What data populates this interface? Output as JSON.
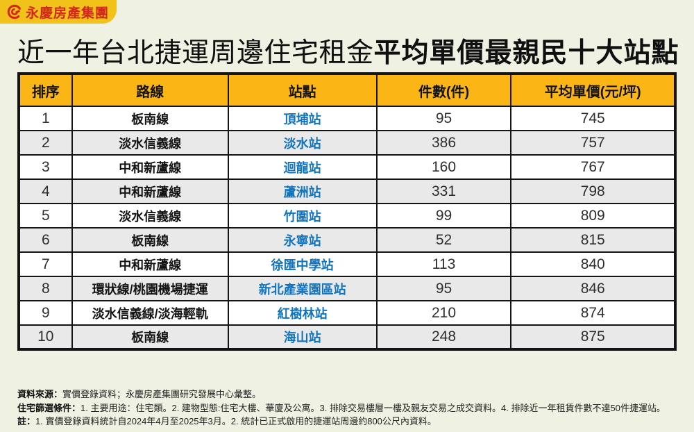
{
  "page": {
    "background_color": "#EFF1E2",
    "accent_yellow": "#FBB515",
    "logo_yellow": "#F1C31A",
    "logo_red": "#D3271C",
    "station_blue": "#1274BC",
    "alt_row_gray": "#E9E9E9"
  },
  "logo": {
    "text": "永慶房產集團"
  },
  "title": {
    "normal": "近一年台北捷運周邊住宅租金",
    "heavy": "平均單價最親民十大站點"
  },
  "table": {
    "columns": [
      "排序",
      "路線",
      "站點",
      "件數(件)",
      "平均單價(元/坪)"
    ],
    "rows": [
      {
        "rank": "1",
        "line": "板南線",
        "station": "頂埔站",
        "count": "95",
        "price": "745"
      },
      {
        "rank": "2",
        "line": "淡水信義線",
        "station": "淡水站",
        "count": "386",
        "price": "757"
      },
      {
        "rank": "3",
        "line": "中和新蘆線",
        "station": "迴龍站",
        "count": "160",
        "price": "767"
      },
      {
        "rank": "4",
        "line": "中和新蘆線",
        "station": "蘆洲站",
        "count": "331",
        "price": "798"
      },
      {
        "rank": "5",
        "line": "淡水信義線",
        "station": "竹圍站",
        "count": "99",
        "price": "809"
      },
      {
        "rank": "6",
        "line": "板南線",
        "station": "永寧站",
        "count": "52",
        "price": "815"
      },
      {
        "rank": "7",
        "line": "中和新蘆線",
        "station": "徐匯中學站",
        "count": "113",
        "price": "840"
      },
      {
        "rank": "8",
        "line": "環狀線/桃園機場捷運",
        "station": "新北產業園區站",
        "count": "95",
        "price": "846"
      },
      {
        "rank": "9",
        "line": "淡水信義線/淡海輕軌",
        "station": "紅樹林站",
        "count": "210",
        "price": "874"
      },
      {
        "rank": "10",
        "line": "板南線",
        "station": "海山站",
        "count": "248",
        "price": "875"
      }
    ]
  },
  "notes": [
    {
      "label": "資料來源：",
      "text": "實價登錄資料；永慶房產集團研究發展中心彙整。"
    },
    {
      "label": "住宅篩選條件：",
      "text": "1. 主要用途：住宅類。2. 建物型態:住宅大樓、華廈及公寓。3. 排除交易樓層一樓及親友交易之成交資料。4. 排除近一年租賃件數不達50件捷運站。"
    },
    {
      "label": "註：",
      "text": "1. 實價登錄資料統計自2024年4月至2025年3月。2. 統計已正式啟用的捷運站周邊約800公尺內資料。"
    }
  ],
  "chart_data": {
    "type": "table",
    "title": "近一年台北捷運周邊住宅租金平均單價最親民十大站點",
    "columns": [
      "排序",
      "路線",
      "站點",
      "件數(件)",
      "平均單價(元/坪)"
    ],
    "rows": [
      [
        1,
        "板南線",
        "頂埔站",
        95,
        745
      ],
      [
        2,
        "淡水信義線",
        "淡水站",
        386,
        757
      ],
      [
        3,
        "中和新蘆線",
        "迴龍站",
        160,
        767
      ],
      [
        4,
        "中和新蘆線",
        "蘆洲站",
        331,
        798
      ],
      [
        5,
        "淡水信義線",
        "竹圍站",
        99,
        809
      ],
      [
        6,
        "板南線",
        "永寧站",
        52,
        815
      ],
      [
        7,
        "中和新蘆線",
        "徐匯中學站",
        113,
        840
      ],
      [
        8,
        "環狀線/桃園機場捷運",
        "新北產業園區站",
        95,
        846
      ],
      [
        9,
        "淡水信義線/淡海輕軌",
        "紅樹林站",
        210,
        874
      ],
      [
        10,
        "板南線",
        "海山站",
        248,
        875
      ]
    ],
    "units": {
      "count": "件",
      "price": "元/坪"
    },
    "source": "實價登錄資料；永慶房產集團研究發展中心彙整"
  }
}
